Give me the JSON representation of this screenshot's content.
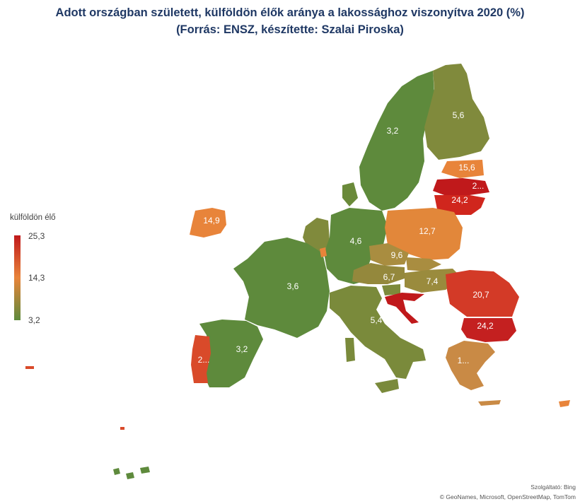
{
  "title": {
    "line1": "Adott országban született, külföldön élők aránya a lakossághoz viszonyítva 2020 (%)",
    "line2": "(Forrás: ENSZ, készítette: Szalai Piroska)"
  },
  "legend": {
    "title": "külföldön élő",
    "max": "25,3",
    "mid": "14,3",
    "min": "3,2"
  },
  "attribution": {
    "line1": "Szolgáltató: Bing",
    "line2": "© GeoNames, Microsoft, OpenStreetMap, TomTom"
  },
  "colors": {
    "low": "#5e8a3c",
    "mid": "#e8843a",
    "high": "#c0191b"
  },
  "regions": {
    "sweden": {
      "label": "3,2",
      "value": 3.2
    },
    "finland": {
      "label": "5,6",
      "value": 5.6
    },
    "estonia": {
      "label": "15,6",
      "value": 15.6
    },
    "latvia": {
      "label": "2...",
      "value": 25.3
    },
    "lithuania": {
      "label": "24,2",
      "value": 24.2
    },
    "ireland": {
      "label": "14,9",
      "value": 14.9
    },
    "poland": {
      "label": "12,7",
      "value": 12.7
    },
    "germany": {
      "label": "4,6",
      "value": 4.6
    },
    "czechia": {
      "label": "9,6",
      "value": 9.6
    },
    "austria": {
      "label": "6,7",
      "value": 6.7
    },
    "hungary": {
      "label": "7,4",
      "value": 7.4
    },
    "romania": {
      "label": "20,7",
      "value": 20.7
    },
    "bulgaria": {
      "label": "24,2",
      "value": 24.2
    },
    "france": {
      "label": "3,6",
      "value": 3.6
    },
    "italy": {
      "label": "5,4",
      "value": 5.4
    },
    "spain": {
      "label": "3,2",
      "value": 3.2
    },
    "portugal": {
      "label": "2...",
      "value": 20.0
    },
    "greece": {
      "label": "1...",
      "value": 10.0
    }
  }
}
